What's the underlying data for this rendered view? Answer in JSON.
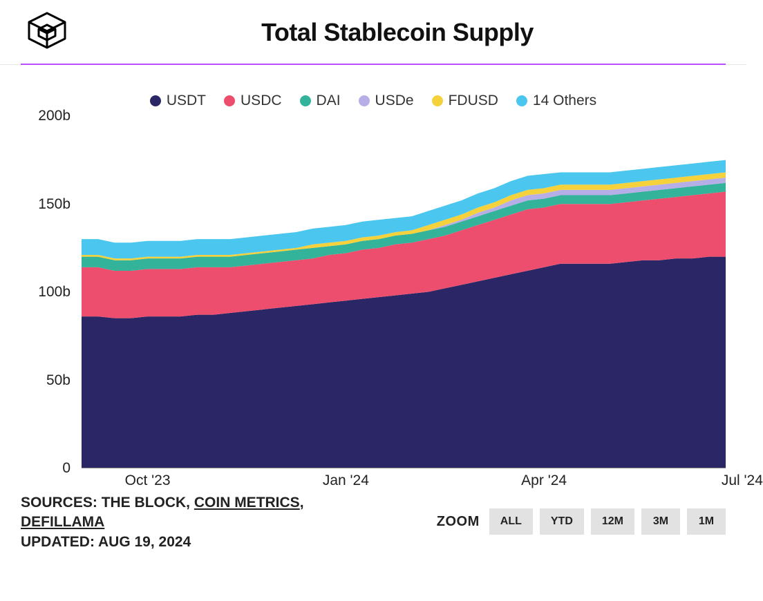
{
  "header": {
    "title": "Total Stablecoin Supply"
  },
  "chart": {
    "type": "stacked-area",
    "background_color": "#ffffff",
    "accent_line_color": "#b84dff",
    "y": {
      "min": 0,
      "max": 200,
      "ticks": [
        0,
        50,
        100,
        150,
        200
      ],
      "tick_labels": [
        "0",
        "50b",
        "100b",
        "150b",
        "200b"
      ],
      "label_fontsize": 21,
      "label_color": "#222"
    },
    "x": {
      "count": 40,
      "tick_positions": [
        4,
        16,
        28,
        40
      ],
      "tick_labels": [
        "Oct '23",
        "Jan '24",
        "Apr '24",
        "Jul '24"
      ],
      "label_fontsize": 21,
      "label_color": "#222"
    },
    "series": [
      {
        "name": "USDT",
        "color": "#2b2766",
        "values": [
          86,
          86,
          85,
          85,
          86,
          86,
          86,
          87,
          87,
          88,
          89,
          90,
          91,
          92,
          93,
          94,
          95,
          96,
          97,
          98,
          99,
          100,
          102,
          104,
          106,
          108,
          110,
          112,
          114,
          116,
          116,
          116,
          116,
          117,
          118,
          118,
          119,
          119,
          120,
          120
        ]
      },
      {
        "name": "USDC",
        "color": "#ed4e6e",
        "values": [
          28,
          28,
          27,
          27,
          27,
          27,
          27,
          27,
          27,
          26,
          26,
          26,
          26,
          26,
          26,
          27,
          27,
          28,
          28,
          29,
          29,
          30,
          30,
          31,
          32,
          33,
          34,
          35,
          34,
          34,
          34,
          34,
          34,
          34,
          34,
          35,
          35,
          36,
          36,
          37
        ]
      },
      {
        "name": "DAI",
        "color": "#33b39a",
        "values": [
          6,
          6,
          6,
          6,
          6,
          6,
          6,
          6,
          6,
          6,
          6,
          6,
          6,
          6,
          6,
          5,
          5,
          5,
          5,
          5,
          5,
          5,
          5,
          5,
          5,
          5,
          5,
          5,
          5,
          5,
          5,
          5,
          5,
          5,
          5,
          5,
          5,
          5,
          5,
          5
        ]
      },
      {
        "name": "USDe",
        "color": "#b6aee6",
        "values": [
          0,
          0,
          0,
          0,
          0,
          0,
          0,
          0,
          0,
          0,
          0,
          0,
          0,
          0,
          0,
          0,
          0,
          0,
          0,
          0,
          0,
          0,
          1,
          1,
          2,
          2,
          3,
          3,
          3,
          3,
          3,
          3,
          3,
          3,
          3,
          3,
          3,
          3,
          3,
          3
        ]
      },
      {
        "name": "FDUSD",
        "color": "#f5d23b",
        "values": [
          1,
          1,
          1,
          1,
          1,
          1,
          1,
          1,
          1,
          1,
          1,
          1,
          1,
          1,
          2,
          2,
          2,
          2,
          2,
          2,
          2,
          3,
          3,
          3,
          3,
          3,
          3,
          3,
          3,
          3,
          3,
          3,
          3,
          3,
          3,
          3,
          3,
          3,
          3,
          3
        ]
      },
      {
        "name": "14 Others",
        "color": "#4ac6ef",
        "values": [
          9,
          9,
          9,
          9,
          9,
          9,
          9,
          9,
          9,
          9,
          9,
          9,
          9,
          9,
          9,
          9,
          9,
          9,
          9,
          8,
          8,
          8,
          8,
          8,
          8,
          8,
          8,
          8,
          8,
          7,
          7,
          7,
          7,
          7,
          7,
          7,
          7,
          7,
          7,
          7
        ]
      }
    ],
    "legend_fontsize": 21
  },
  "footer": {
    "sources_prefix": "SOURCES: ",
    "sources_plain": "THE BLOCK, ",
    "sources_link1": "COIN METRICS",
    "sources_sep": ", ",
    "sources_link2": "DEFILLAMA",
    "updated_prefix": "UPDATED: ",
    "updated_value": "AUG 19, 2024",
    "zoom_label": "ZOOM",
    "zoom_buttons": [
      "ALL",
      "YTD",
      "12M",
      "3M",
      "1M"
    ]
  }
}
